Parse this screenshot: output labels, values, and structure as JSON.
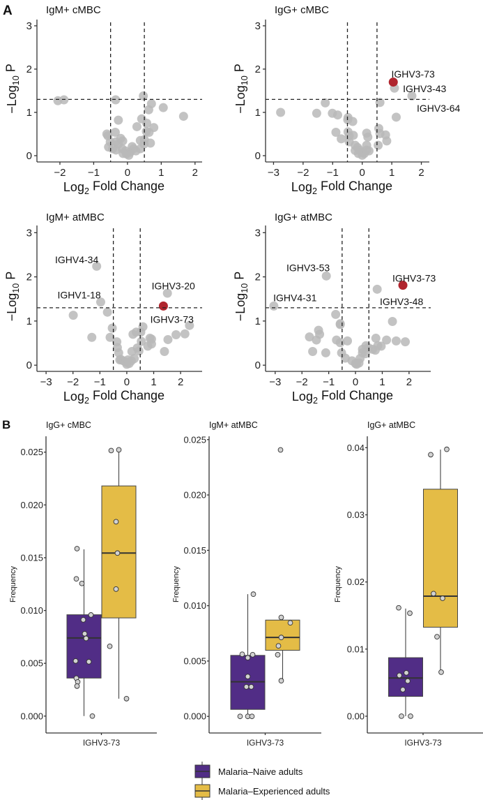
{
  "figure": {
    "panel_a_label": "A",
    "panel_b_label": "B"
  },
  "colors": {
    "point": "#b8b8b8",
    "highlight": "#b0252e",
    "naive": "#512d86",
    "experienced": "#e4bc46",
    "box_point": "#d2d2d2"
  },
  "chart_data": [
    {
      "type": "scatter",
      "title": "IgM+ cMBC",
      "xlabel": {
        "pre": "Log",
        "sub": "2",
        "post": " Fold Change"
      },
      "ylabel": {
        "pre": "−Log",
        "sub": "10",
        "post": " P"
      },
      "xlim": [
        -2.68,
        2.21
      ],
      "ylim": [
        -0.145,
        3.08
      ],
      "xticks": [
        {
          "v": -2,
          "label": "−2"
        },
        {
          "v": -1,
          "label": "−1"
        },
        {
          "v": 0,
          "label": "0"
        },
        {
          "v": 1,
          "label": "1"
        },
        {
          "v": 2,
          "label": "2"
        }
      ],
      "yticks": [
        {
          "v": 0,
          "label": "0"
        },
        {
          "v": 1,
          "label": "1"
        },
        {
          "v": 2,
          "label": "2"
        },
        {
          "v": 3,
          "label": "3"
        }
      ],
      "thresholds": {
        "fold_change": [
          -0.5,
          0.5
        ],
        "neg_log10_p": 1.3
      },
      "points": [
        [
          -2.06,
          1.27
        ],
        [
          -1.88,
          1.29
        ],
        [
          -0.35,
          1.29
        ],
        [
          0.47,
          1.38
        ],
        [
          0.71,
          1.2
        ],
        [
          1.06,
          1.11
        ],
        [
          0.63,
          1.06
        ],
        [
          1.66,
          0.91
        ],
        [
          -0.27,
          0.82
        ],
        [
          0.42,
          0.85
        ],
        [
          0.57,
          0.75
        ],
        [
          0.28,
          0.67
        ],
        [
          0.78,
          0.65
        ],
        [
          -0.61,
          0.5
        ],
        [
          -0.58,
          0.46
        ],
        [
          -0.36,
          0.54
        ],
        [
          0.56,
          0.56
        ],
        [
          0.64,
          0.54
        ],
        [
          -0.2,
          0.4
        ],
        [
          -0.51,
          0.32
        ],
        [
          -0.34,
          0.32
        ],
        [
          -0.14,
          0.34
        ],
        [
          -0.27,
          0.27
        ],
        [
          0.38,
          0.35
        ],
        [
          0.5,
          0.37
        ],
        [
          0.68,
          0.29
        ],
        [
          0.49,
          0.27
        ],
        [
          -0.56,
          0.2
        ],
        [
          -0.44,
          0.16
        ],
        [
          -0.34,
          0.13
        ],
        [
          -0.16,
          0.16
        ],
        [
          0.14,
          0.21
        ],
        [
          0.18,
          0.16
        ],
        [
          0.38,
          0.16
        ],
        [
          -0.06,
          0.11
        ],
        [
          0.08,
          0.08
        ],
        [
          -0.03,
          0.04
        ],
        [
          0.04,
          0.01
        ],
        [
          -0.13,
          0.05
        ],
        [
          0.25,
          0.11
        ]
      ],
      "highlight": [],
      "labels": []
    },
    {
      "type": "scatter",
      "title": "IgG+ cMBC",
      "xlabel": {
        "pre": "Log",
        "sub": "2",
        "post": " Fold Change"
      },
      "ylabel": {
        "pre": "−Log",
        "sub": "10",
        "post": " P"
      },
      "xlim": [
        -3.27,
        2.27
      ],
      "ylim": [
        -0.145,
        3.08
      ],
      "xticks": [
        {
          "v": -3,
          "label": "−3"
        },
        {
          "v": -2,
          "label": "−2"
        },
        {
          "v": -1,
          "label": "−1"
        },
        {
          "v": 0,
          "label": "0"
        },
        {
          "v": 1,
          "label": "1"
        },
        {
          "v": 2,
          "label": "2"
        }
      ],
      "yticks": [
        {
          "v": 0,
          "label": "0"
        },
        {
          "v": 1,
          "label": "1"
        },
        {
          "v": 2,
          "label": "2"
        },
        {
          "v": 3,
          "label": "3"
        }
      ],
      "thresholds": {
        "fold_change": [
          -0.5,
          0.5
        ],
        "neg_log10_p": 1.3
      },
      "points": [
        [
          1.09,
          1.56
        ],
        [
          1.68,
          1.38
        ],
        [
          0.6,
          1.23
        ],
        [
          -1.25,
          1.22
        ],
        [
          -2.76,
          1.0
        ],
        [
          -1.54,
          0.98
        ],
        [
          -1.01,
          0.98
        ],
        [
          -0.83,
          0.94
        ],
        [
          1.15,
          0.89
        ],
        [
          -0.48,
          0.88
        ],
        [
          -0.49,
          0.83
        ],
        [
          -0.32,
          0.79
        ],
        [
          0.56,
          0.63
        ],
        [
          0.6,
          0.51
        ],
        [
          0.79,
          0.48
        ],
        [
          0.15,
          0.52
        ],
        [
          0.19,
          0.43
        ],
        [
          -0.89,
          0.54
        ],
        [
          -0.71,
          0.39
        ],
        [
          -0.48,
          0.55
        ],
        [
          -0.44,
          0.46
        ],
        [
          -0.3,
          0.47
        ],
        [
          -0.44,
          0.32
        ],
        [
          0.83,
          0.34
        ],
        [
          0.54,
          0.24
        ],
        [
          -0.24,
          0.24
        ],
        [
          -0.16,
          0.19
        ],
        [
          0.15,
          0.24
        ],
        [
          -0.09,
          0.13
        ],
        [
          -0.24,
          0.12
        ],
        [
          0.23,
          0.11
        ],
        [
          -0.01,
          0.08
        ],
        [
          -0.13,
          0.05
        ],
        [
          0.07,
          0.05
        ],
        [
          0,
          0.01
        ],
        [
          0.15,
          0.13
        ]
      ],
      "highlight": [
        [
          1.05,
          1.7
        ]
      ],
      "labels": [
        {
          "text": "IGHV3-73",
          "x": 1.72,
          "y": 1.89
        },
        {
          "text": "IGHV3-43",
          "x": 2.11,
          "y": 1.55
        },
        {
          "text": "IGHV3-64",
          "x": 2.58,
          "y": 1.1
        }
      ]
    },
    {
      "type": "scatter",
      "title": "IgM+ atMBC",
      "xlabel": {
        "pre": "Log",
        "sub": "2",
        "post": " Fold Change"
      },
      "ylabel": {
        "pre": "−Log",
        "sub": "10",
        "post": " P"
      },
      "xlim": [
        -3.34,
        2.8
      ],
      "ylim": [
        -0.14,
        3.1
      ],
      "xticks": [
        {
          "v": -3,
          "label": "−3"
        },
        {
          "v": -2,
          "label": "−2"
        },
        {
          "v": -1,
          "label": "−1"
        },
        {
          "v": 0,
          "label": "0"
        },
        {
          "v": 1,
          "label": "1"
        },
        {
          "v": 2,
          "label": "2"
        }
      ],
      "yticks": [
        {
          "v": 0,
          "label": "0"
        },
        {
          "v": 1,
          "label": "1"
        },
        {
          "v": 2,
          "label": "2"
        },
        {
          "v": 3,
          "label": "3"
        }
      ],
      "thresholds": {
        "fold_change": [
          -0.5,
          0.5
        ],
        "neg_log10_p": 1.3
      },
      "points": [
        [
          -1.12,
          2.24
        ],
        [
          -0.97,
          1.43
        ],
        [
          -0.72,
          1.2
        ],
        [
          -1.99,
          1.13
        ],
        [
          1.51,
          1.63
        ],
        [
          2.33,
          0.9
        ],
        [
          2.16,
          0.71
        ],
        [
          1.83,
          0.69
        ],
        [
          1.53,
          0.58
        ],
        [
          1.4,
          0.31
        ],
        [
          -1.3,
          0.63
        ],
        [
          -0.62,
          0.63
        ],
        [
          -0.54,
          0.84
        ],
        [
          0.6,
          0.87
        ],
        [
          0.52,
          0.75
        ],
        [
          0.35,
          0.75
        ],
        [
          0.23,
          0.7
        ],
        [
          0.86,
          0.61
        ],
        [
          0.92,
          0.59
        ],
        [
          0.54,
          0.54
        ],
        [
          0.78,
          0.43
        ],
        [
          0.92,
          0.48
        ],
        [
          -0.37,
          0.53
        ],
        [
          -0.35,
          0.4
        ],
        [
          -0.3,
          0.28
        ],
        [
          0.39,
          0.39
        ],
        [
          0.45,
          0.32
        ],
        [
          0.19,
          0.31
        ],
        [
          -0.22,
          0.13
        ],
        [
          -0.26,
          0.12
        ],
        [
          -0.13,
          0.1
        ],
        [
          -0.04,
          0.07
        ],
        [
          0.09,
          0.04
        ],
        [
          0,
          0.02
        ],
        [
          0.17,
          0.1
        ],
        [
          0.28,
          0.15
        ],
        [
          0.04,
          0.12
        ]
      ],
      "highlight": [
        [
          1.36,
          1.34
        ]
      ],
      "labels": [
        {
          "text": "IGHV4-34",
          "x": -1.86,
          "y": 2.39
        },
        {
          "text": "IGHV1-18",
          "x": -1.77,
          "y": 1.59
        },
        {
          "text": "IGHV3-20",
          "x": 1.73,
          "y": 1.8
        },
        {
          "text": "IGHV3-73",
          "x": 1.68,
          "y": 1.04
        }
      ]
    },
    {
      "type": "scatter",
      "title": "IgG+ atMBC",
      "xlabel": {
        "pre": "Log",
        "sub": "2",
        "post": " Fold Change"
      },
      "ylabel": {
        "pre": "−Log",
        "sub": "10",
        "post": " P"
      },
      "xlim": [
        -3.36,
        2.81
      ],
      "ylim": [
        -0.14,
        3.1
      ],
      "xticks": [
        {
          "v": -3,
          "label": "−3"
        },
        {
          "v": -2,
          "label": "−2"
        },
        {
          "v": -1,
          "label": "−1"
        },
        {
          "v": 0,
          "label": "0"
        },
        {
          "v": 1,
          "label": "1"
        },
        {
          "v": 2,
          "label": "2"
        }
      ],
      "yticks": [
        {
          "v": 0,
          "label": "0"
        },
        {
          "v": 1,
          "label": "1"
        },
        {
          "v": 2,
          "label": "2"
        },
        {
          "v": 3,
          "label": "3"
        }
      ],
      "thresholds": {
        "fold_change": [
          -0.5,
          0.5
        ],
        "neg_log10_p": 1.3
      },
      "points": [
        [
          -1.09,
          2.02
        ],
        [
          0.81,
          1.72
        ],
        [
          -3.05,
          1.34
        ],
        [
          -0.74,
          1.15
        ],
        [
          -0.57,
          0.94
        ],
        [
          -0.57,
          0.92
        ],
        [
          1.38,
          0.99
        ],
        [
          -1.38,
          0.79
        ],
        [
          -1.34,
          0.7
        ],
        [
          -1.72,
          0.64
        ],
        [
          -1.46,
          0.57
        ],
        [
          -0.71,
          0.57
        ],
        [
          -0.57,
          0.51
        ],
        [
          -0.3,
          0.55
        ],
        [
          -1.6,
          0.31
        ],
        [
          -1.11,
          0.28
        ],
        [
          -0.52,
          0.28
        ],
        [
          -0.38,
          0.16
        ],
        [
          0.76,
          0.61
        ],
        [
          1.16,
          0.57
        ],
        [
          1.52,
          0.55
        ],
        [
          1.86,
          0.53
        ],
        [
          0.96,
          0.43
        ],
        [
          0.83,
          0.44
        ],
        [
          0.64,
          0.36
        ],
        [
          0.74,
          0.34
        ],
        [
          0.39,
          0.44
        ],
        [
          0.48,
          0.4
        ],
        [
          0.26,
          0.36
        ],
        [
          0.26,
          0.28
        ],
        [
          0.37,
          0.26
        ],
        [
          0.17,
          0.15
        ],
        [
          -0.13,
          0.1
        ],
        [
          0,
          0.04
        ],
        [
          0.13,
          0.05
        ],
        [
          0.04,
          0.02
        ]
      ],
      "highlight": [
        [
          1.77,
          1.81
        ]
      ],
      "labels": [
        {
          "text": "IGHV3-53",
          "x": -1.77,
          "y": 2.21
        },
        {
          "text": "IGHV4-31",
          "x": -2.26,
          "y": 1.53
        },
        {
          "text": "IGHV3-73",
          "x": 2.19,
          "y": 1.97
        },
        {
          "text": "IGHV3-48",
          "x": 1.72,
          "y": 1.44
        }
      ]
    },
    {
      "type": "box",
      "title": "IgG+ cMBC",
      "ylabel": "Frequency",
      "category": "IGHV3-73",
      "ylim": [
        -0.0016,
        0.0265
      ],
      "yticks": [
        {
          "v": 0,
          "label": "0.000"
        },
        {
          "v": 0.005,
          "label": "0.005"
        },
        {
          "v": 0.01,
          "label": "0.010"
        },
        {
          "v": 0.015,
          "label": "0.015"
        },
        {
          "v": 0.02,
          "label": "0.020"
        },
        {
          "v": 0.025,
          "label": "0.025"
        }
      ],
      "series": [
        {
          "name": "Malaria–Naive adults",
          "q1": 0.0036,
          "median": 0.0074,
          "q3": 0.0096,
          "whisker_low": 0.0,
          "whisker_high": 0.0158,
          "points": [
            0.01586,
            0.013,
            0.01256,
            0.00958,
            0.00912,
            0.0078,
            0.00736,
            0.00522,
            0.00515,
            0.00359,
            0.00324,
            0.00284,
            0.0
          ]
        },
        {
          "name": "Malaria–Experienced adults",
          "q1": 0.0093,
          "median": 0.01544,
          "q3": 0.0218,
          "whisker_low": 0.00165,
          "whisker_high": 0.0252,
          "points": [
            0.02515,
            0.02522,
            0.01841,
            0.01544,
            0.01203,
            0.00661,
            0.00165
          ]
        }
      ]
    },
    {
      "type": "box",
      "title": "IgM+ atMBC",
      "ylabel": "Frequency",
      "category": "IGHV3-73",
      "ylim": [
        -0.0015,
        0.0253
      ],
      "yticks": [
        {
          "v": 0,
          "label": "0.000"
        },
        {
          "v": 0.005,
          "label": "0.005"
        },
        {
          "v": 0.01,
          "label": "0.010"
        },
        {
          "v": 0.015,
          "label": "0.015"
        },
        {
          "v": 0.02,
          "label": "0.020"
        },
        {
          "v": 0.025,
          "label": "0.025"
        }
      ],
      "series": [
        {
          "name": "Malaria–Naive adults",
          "q1": 0.00063,
          "median": 0.00313,
          "q3": 0.00551,
          "whisker_low": 0.0,
          "whisker_high": 0.01104,
          "points": [
            0.01104,
            0.00561,
            0.00557,
            0.0053,
            0.0036,
            0.00267,
            0.00267,
            0.0,
            0.0,
            0.0
          ]
        },
        {
          "name": "Malaria–Experienced adults",
          "q1": 0.00597,
          "median": 0.00713,
          "q3": 0.0087,
          "whisker_low": 0.00322,
          "whisker_high": 0.00894,
          "points": [
            0.02407,
            0.00894,
            0.00845,
            0.00713,
            0.00637,
            0.00557,
            0.00322
          ]
        }
      ]
    },
    {
      "type": "box",
      "title": "IgG+ atMBC",
      "ylabel": "Frequency",
      "category": "IGHV3-73",
      "ylim": [
        -0.0025,
        0.0417
      ],
      "yticks": [
        {
          "v": 0,
          "label": "0.00"
        },
        {
          "v": 0.01,
          "label": "0.01"
        },
        {
          "v": 0.02,
          "label": "0.02"
        },
        {
          "v": 0.03,
          "label": "0.03"
        },
        {
          "v": 0.04,
          "label": "0.04"
        }
      ],
      "series": [
        {
          "name": "Malaria–Naive adults",
          "q1": 0.00295,
          "median": 0.00569,
          "q3": 0.00872,
          "whisker_low": 0.0,
          "whisker_high": 0.01604,
          "points": [
            0.01615,
            0.01535,
            0.00646,
            0.00608,
            0.00524,
            0.00396,
            0.0,
            0.0
          ]
        },
        {
          "name": "Malaria–Experienced adults",
          "q1": 0.01326,
          "median": 0.01788,
          "q3": 0.03382,
          "whisker_low": 0.00656,
          "whisker_high": 0.03972,
          "points": [
            0.03896,
            0.03976,
            0.01826,
            0.01757,
            0.01184,
            0.00656
          ]
        }
      ]
    }
  ],
  "legend": {
    "items": [
      {
        "label": "Malaria–Naive adults"
      },
      {
        "label": "Malaria–Experienced adults"
      }
    ]
  }
}
